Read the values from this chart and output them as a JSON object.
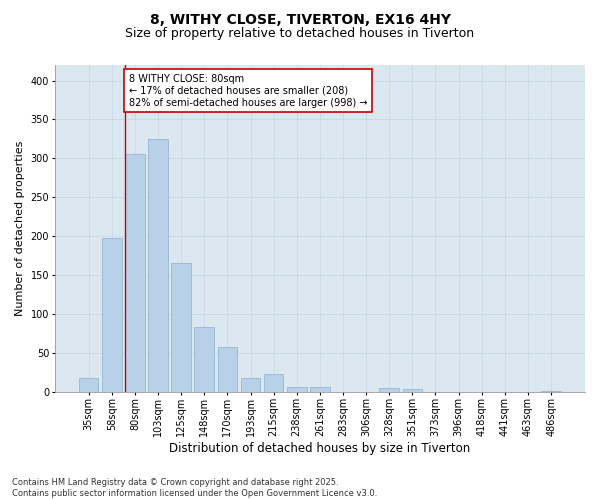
{
  "title": "8, WITHY CLOSE, TIVERTON, EX16 4HY",
  "subtitle": "Size of property relative to detached houses in Tiverton",
  "xlabel": "Distribution of detached houses by size in Tiverton",
  "ylabel": "Number of detached properties",
  "categories": [
    "35sqm",
    "58sqm",
    "80sqm",
    "103sqm",
    "125sqm",
    "148sqm",
    "170sqm",
    "193sqm",
    "215sqm",
    "238sqm",
    "261sqm",
    "283sqm",
    "306sqm",
    "328sqm",
    "351sqm",
    "373sqm",
    "396sqm",
    "418sqm",
    "441sqm",
    "463sqm",
    "486sqm"
  ],
  "values": [
    18,
    198,
    305,
    325,
    165,
    83,
    57,
    18,
    23,
    6,
    6,
    0,
    0,
    4,
    3,
    0,
    0,
    0,
    0,
    0,
    1
  ],
  "bar_color": "#b8d0e8",
  "bar_edge_color": "#8ab0d0",
  "vline_index": 2,
  "annotation_text": "8 WITHY CLOSE: 80sqm\n← 17% of detached houses are smaller (208)\n82% of semi-detached houses are larger (998) →",
  "annotation_box_color": "#ffffff",
  "annotation_box_edge_color": "#cc0000",
  "vline_color": "#cc0000",
  "ylim": [
    0,
    420
  ],
  "yticks": [
    0,
    50,
    100,
    150,
    200,
    250,
    300,
    350,
    400
  ],
  "grid_color": "#c8d8e8",
  "plot_bg_color": "#dce8f0",
  "fig_bg_color": "#ffffff",
  "footer_text": "Contains HM Land Registry data © Crown copyright and database right 2025.\nContains public sector information licensed under the Open Government Licence v3.0.",
  "title_fontsize": 10,
  "subtitle_fontsize": 9,
  "xlabel_fontsize": 8.5,
  "ylabel_fontsize": 8,
  "tick_fontsize": 7,
  "annotation_fontsize": 7,
  "footer_fontsize": 6
}
